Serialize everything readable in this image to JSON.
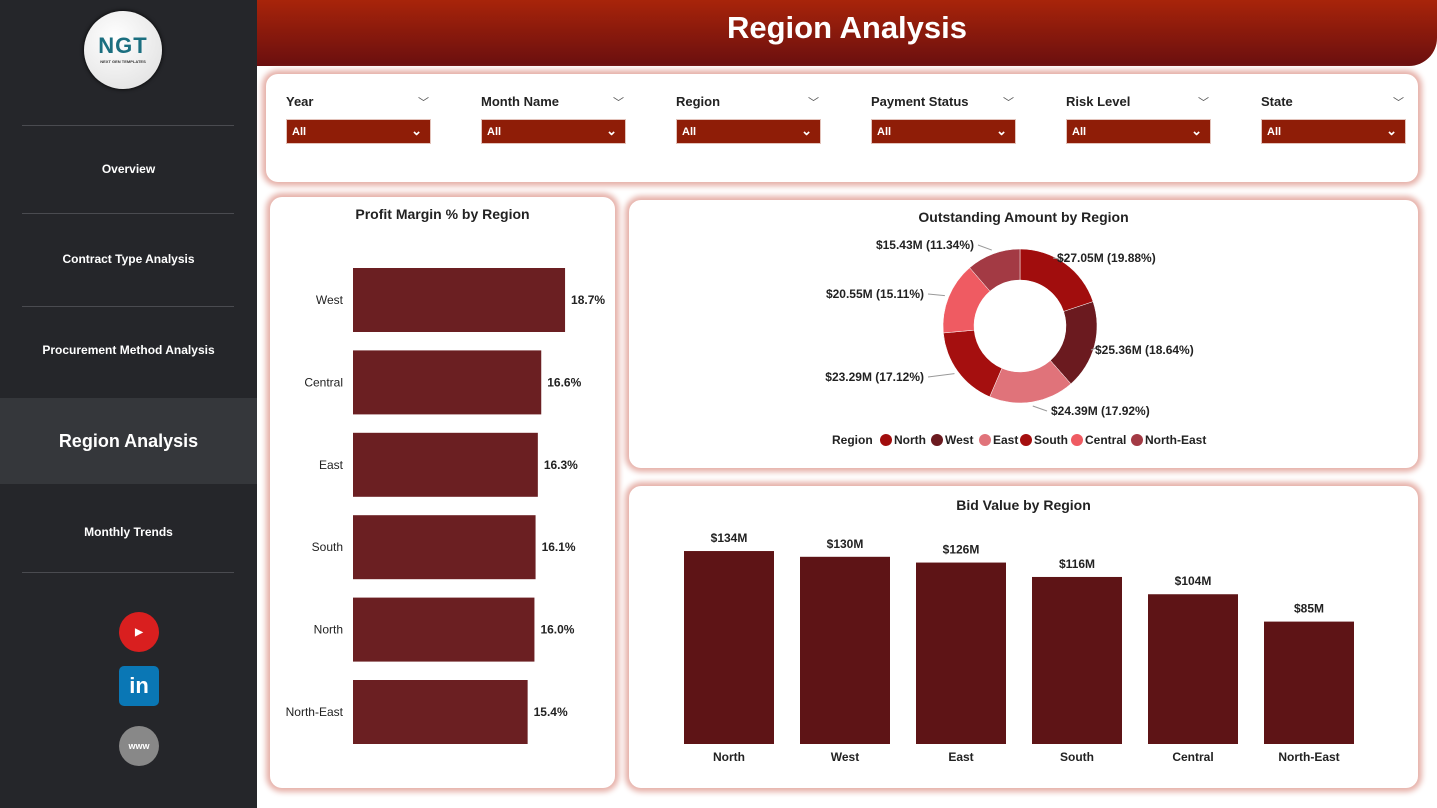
{
  "logo": {
    "text": "NGT",
    "subtitle": "NEXT GEN TEMPLATES"
  },
  "nav": [
    {
      "label": "Overview"
    },
    {
      "label": "Contract Type Analysis"
    },
    {
      "label": "Procurement Method Analysis"
    },
    {
      "label": "Region Analysis",
      "active": true
    },
    {
      "label": "Monthly Trends"
    }
  ],
  "social": [
    "youtube-icon",
    "linkedin-icon",
    "website-icon"
  ],
  "header": {
    "title": "Region Analysis"
  },
  "filters": [
    {
      "label": "Year",
      "value": "All"
    },
    {
      "label": "Month Name",
      "value": "All"
    },
    {
      "label": "Region",
      "value": "All"
    },
    {
      "label": "Payment Status",
      "value": "All"
    },
    {
      "label": "Risk Level",
      "value": "All"
    },
    {
      "label": "State",
      "value": "All"
    }
  ],
  "chart_data": [
    {
      "type": "bar",
      "orientation": "horizontal",
      "title": "Profit Margin % by Region",
      "categories": [
        "West",
        "Central",
        "East",
        "South",
        "North",
        "North-East"
      ],
      "values": [
        18.7,
        16.6,
        16.3,
        16.1,
        16.0,
        15.4
      ],
      "labels": [
        "18.7%",
        "16.6%",
        "16.3%",
        "16.1%",
        "16.0%",
        "15.4%"
      ],
      "color": "#6b1f22"
    },
    {
      "type": "pie",
      "donut": true,
      "title": "Outstanding Amount by Region",
      "legend_title": "Region",
      "legend": "bottom",
      "categories": [
        "North",
        "West",
        "East",
        "South",
        "Central",
        "North-East"
      ],
      "values": [
        27.05,
        25.36,
        24.39,
        23.29,
        20.55,
        15.43
      ],
      "labels": [
        "$27.05M (19.88%)",
        "$25.36M (18.64%)",
        "$24.39M (17.92%)",
        "$23.29M (17.12%)",
        "$20.55M (15.11%)",
        "$15.43M (11.34%)"
      ],
      "colors": [
        "#a10d0d",
        "#6b1a1f",
        "#e0737a",
        "#a50f0f",
        "#ef5b62",
        "#a33a44"
      ]
    },
    {
      "type": "bar",
      "title": "Bid Value by Region",
      "categories": [
        "North",
        "West",
        "East",
        "South",
        "Central",
        "North-East"
      ],
      "values": [
        134,
        130,
        126,
        116,
        104,
        85
      ],
      "labels": [
        "$134M",
        "$130M",
        "$126M",
        "$116M",
        "$104M",
        "$85M"
      ],
      "color": "#5e1416"
    }
  ]
}
